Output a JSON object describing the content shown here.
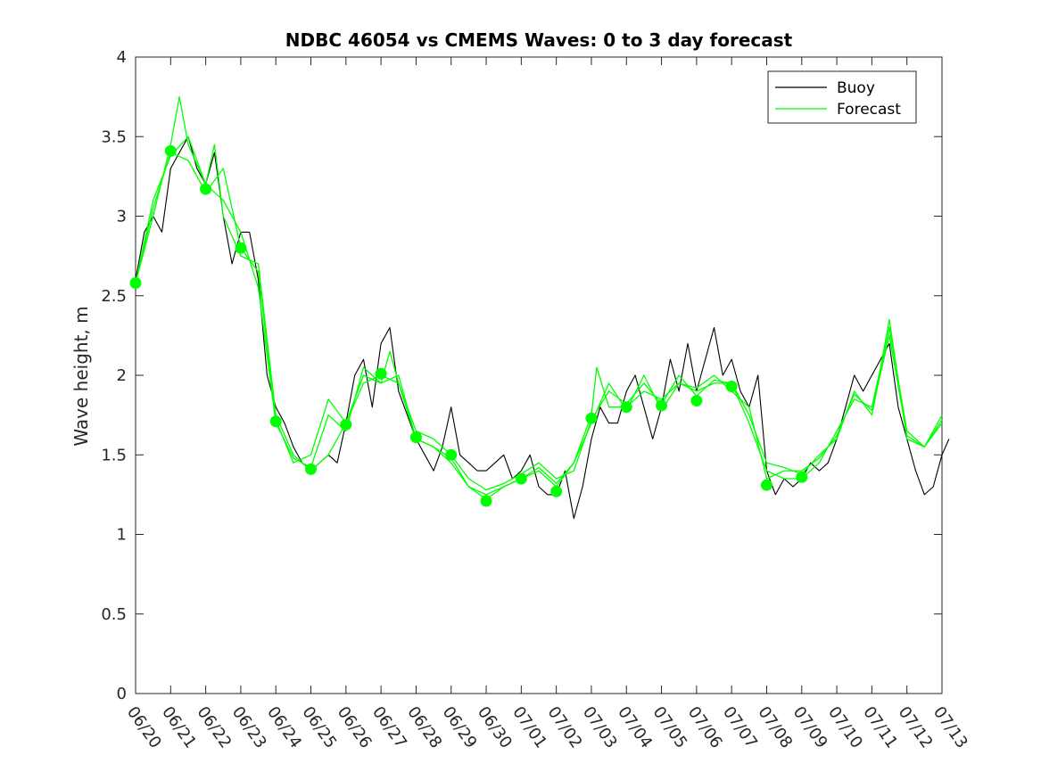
{
  "chart_data": {
    "type": "line",
    "title": "NDBC 46054 vs CMEMS Waves: 0 to 3 day forecast",
    "xlabel": "",
    "ylabel": "Wave height, m",
    "xlim": [
      "06/20",
      "07/13"
    ],
    "ylim": [
      0,
      4
    ],
    "yticks": [
      "0",
      "0.5",
      "1",
      "1.5",
      "2",
      "2.5",
      "3",
      "3.5",
      "4"
    ],
    "xticks": [
      "06/20",
      "06/21",
      "06/22",
      "06/23",
      "06/24",
      "06/25",
      "06/26",
      "06/27",
      "06/28",
      "06/29",
      "06/30",
      "07/01",
      "07/02",
      "07/03",
      "07/04",
      "07/05",
      "07/06",
      "07/07",
      "07/08",
      "07/09",
      "07/10",
      "07/11",
      "07/12",
      "07/13"
    ],
    "grid": false,
    "legend": {
      "location": "top-right",
      "entries": [
        {
          "label": "Buoy",
          "color": "#000000"
        },
        {
          "label": "Forecast",
          "color": "#00ff00"
        }
      ]
    },
    "series": [
      {
        "name": "Buoy",
        "color": "#000000",
        "x": [
          0,
          0.25,
          0.5,
          0.75,
          1,
          1.25,
          1.5,
          1.75,
          2,
          2.25,
          2.5,
          2.75,
          3,
          3.25,
          3.5,
          3.75,
          4,
          4.25,
          4.5,
          4.75,
          5,
          5.25,
          5.5,
          5.75,
          6,
          6.25,
          6.5,
          6.75,
          7,
          7.25,
          7.5,
          7.75,
          8,
          8.25,
          8.5,
          8.75,
          9,
          9.25,
          9.5,
          9.75,
          10,
          10.25,
          10.5,
          10.75,
          11,
          11.25,
          11.5,
          11.75,
          12,
          12.25,
          12.5,
          12.75,
          13,
          13.25,
          13.5,
          13.75,
          14,
          14.25,
          14.5,
          14.75,
          15,
          15.25,
          15.5,
          15.75,
          16,
          16.25,
          16.5,
          16.75,
          17,
          17.25,
          17.5,
          17.75,
          18,
          18.25,
          18.5,
          18.75,
          19,
          19.25,
          19.5,
          19.75,
          20,
          20.25,
          20.5,
          20.75,
          21,
          21.25,
          21.5,
          21.75,
          22,
          22.25,
          22.5,
          22.75,
          23,
          23.2
        ],
        "y": [
          2.6,
          2.9,
          3.0,
          2.9,
          3.3,
          3.4,
          3.5,
          3.3,
          3.2,
          3.4,
          3.0,
          2.7,
          2.9,
          2.9,
          2.6,
          2.0,
          1.8,
          1.7,
          1.55,
          1.45,
          1.4,
          1.45,
          1.5,
          1.45,
          1.7,
          2.0,
          2.1,
          1.8,
          2.2,
          2.3,
          1.9,
          1.75,
          1.6,
          1.5,
          1.4,
          1.55,
          1.8,
          1.5,
          1.45,
          1.4,
          1.4,
          1.45,
          1.5,
          1.35,
          1.4,
          1.5,
          1.3,
          1.25,
          1.25,
          1.4,
          1.1,
          1.3,
          1.6,
          1.8,
          1.7,
          1.7,
          1.9,
          2.0,
          1.8,
          1.6,
          1.8,
          2.1,
          1.9,
          2.2,
          1.9,
          2.1,
          2.3,
          2.0,
          2.1,
          1.9,
          1.8,
          2.0,
          1.4,
          1.25,
          1.35,
          1.3,
          1.35,
          1.45,
          1.4,
          1.45,
          1.6,
          1.8,
          2.0,
          1.9,
          2.0,
          2.1,
          2.2,
          1.8,
          1.6,
          1.4,
          1.25,
          1.3,
          1.5,
          1.6
        ]
      },
      {
        "name": "Forecast",
        "color": "#00ff00",
        "x": [
          0,
          0.5,
          1,
          1.25,
          1.5,
          2,
          2.25,
          2.5,
          3,
          3.5,
          4,
          4.5,
          5,
          5.5,
          6,
          6.5,
          7,
          7.25,
          7.5,
          8,
          8.5,
          9,
          9.5,
          10,
          10.5,
          11,
          11.5,
          12,
          12.5,
          13,
          13.15,
          13.5,
          14,
          14.5,
          15,
          15.5,
          16,
          16.5,
          17,
          17.5,
          18,
          18.5,
          19,
          19.5,
          20,
          20.5,
          21,
          21.25,
          21.5,
          22,
          22.5,
          23
        ],
        "y": [
          2.58,
          3.0,
          3.45,
          3.75,
          3.45,
          3.2,
          3.45,
          3.0,
          2.75,
          2.7,
          1.75,
          1.5,
          1.4,
          1.5,
          1.7,
          2.0,
          1.95,
          2.15,
          1.95,
          1.6,
          1.55,
          1.45,
          1.3,
          1.25,
          1.3,
          1.35,
          1.4,
          1.3,
          1.45,
          1.75,
          2.05,
          1.8,
          1.8,
          1.9,
          1.85,
          1.95,
          1.9,
          1.95,
          1.95,
          1.7,
          1.4,
          1.35,
          1.35,
          1.45,
          1.65,
          1.85,
          1.8,
          2.05,
          2.35,
          1.6,
          1.55,
          1.75
        ]
      },
      {
        "name": "Forecast",
        "color": "#00ff00",
        "x": [
          0,
          0.5,
          1,
          1.5,
          2,
          2.5,
          3,
          3.5,
          4,
          4.5,
          5,
          5.5,
          6,
          6.5,
          7,
          7.5,
          8,
          8.5,
          9,
          9.5,
          10,
          10.5,
          11,
          11.5,
          12,
          12.5,
          13,
          13.5,
          14,
          14.5,
          15,
          15.5,
          16,
          16.5,
          17,
          17.5,
          18,
          18.5,
          19,
          19.5,
          20,
          20.5,
          21,
          21.5,
          22,
          22.5,
          23
        ],
        "y": [
          2.58,
          3.05,
          3.4,
          3.35,
          3.15,
          3.3,
          2.8,
          2.65,
          1.72,
          1.45,
          1.5,
          1.85,
          1.7,
          1.95,
          2.0,
          1.95,
          1.65,
          1.6,
          1.5,
          1.35,
          1.28,
          1.32,
          1.38,
          1.45,
          1.35,
          1.4,
          1.72,
          1.9,
          1.82,
          1.95,
          1.82,
          2.0,
          1.87,
          1.97,
          1.95,
          1.75,
          1.45,
          1.42,
          1.38,
          1.5,
          1.6,
          1.9,
          1.75,
          2.3,
          1.65,
          1.55,
          1.7
        ]
      },
      {
        "name": "Forecast",
        "color": "#00ff00",
        "x": [
          0,
          0.5,
          1,
          1.5,
          2,
          2.5,
          3,
          3.5,
          4,
          4.5,
          5,
          5.5,
          6,
          6.5,
          7,
          7.5,
          8,
          8.5,
          9,
          9.5,
          10,
          10.5,
          11,
          11.5,
          12,
          12.5,
          13,
          13.5,
          14,
          14.5,
          15,
          15.5,
          16,
          16.5,
          17,
          17.5,
          18,
          18.5,
          19,
          19.5,
          20,
          20.5,
          21,
          21.5,
          22,
          22.5,
          23
        ],
        "y": [
          2.58,
          3.1,
          3.38,
          3.5,
          3.2,
          3.1,
          2.9,
          2.55,
          1.7,
          1.48,
          1.42,
          1.75,
          1.65,
          2.05,
          1.95,
          2.0,
          1.6,
          1.55,
          1.48,
          1.3,
          1.22,
          1.3,
          1.35,
          1.42,
          1.32,
          1.45,
          1.7,
          1.95,
          1.78,
          2.0,
          1.78,
          1.95,
          1.92,
          2.0,
          1.9,
          1.8,
          1.35,
          1.4,
          1.4,
          1.48,
          1.62,
          1.88,
          1.78,
          2.25,
          1.62,
          1.55,
          1.72
        ]
      }
    ],
    "markers": {
      "name": "Forecast",
      "color": "#00ff00",
      "x": [
        0,
        1,
        2,
        3,
        4,
        5,
        6,
        7,
        8,
        9,
        10,
        11,
        12,
        13,
        14,
        15,
        16,
        17,
        18,
        19
      ],
      "y": [
        2.58,
        3.41,
        3.17,
        2.8,
        1.71,
        1.41,
        1.69,
        2.01,
        1.61,
        1.5,
        1.21,
        1.35,
        1.27,
        1.73,
        1.8,
        1.81,
        1.84,
        1.93,
        1.31,
        1.36
      ]
    }
  }
}
